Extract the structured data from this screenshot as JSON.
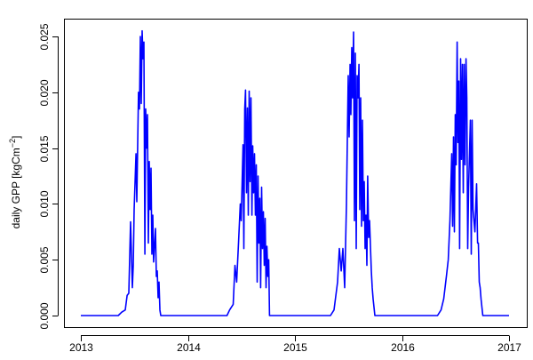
{
  "chart_data": {
    "type": "line",
    "title": "",
    "xlabel": "",
    "ylabel": "daily GPP [kgCm",
    "ylabel_superscript": "−2",
    "ylabel_close": "]",
    "xlim": [
      2013,
      2017
    ],
    "ylim": [
      0,
      0.025
    ],
    "x_ticks": [
      2013,
      2014,
      2015,
      2016,
      2017
    ],
    "x_tick_labels": [
      "2013",
      "2014",
      "2015",
      "2016",
      "2017"
    ],
    "y_ticks": [
      0,
      0.005,
      0.01,
      0.015,
      0.02,
      0.025
    ],
    "y_tick_labels": [
      "0.000",
      "0.005",
      "0.010",
      "0.015",
      "0.020",
      "0.025"
    ],
    "grid": false,
    "legend": "none",
    "series": [
      {
        "color": "#0000ff",
        "points": [
          [
            2013.0,
            0
          ],
          [
            2013.349,
            0
          ],
          [
            2013.382,
            0.0003
          ],
          [
            2013.415,
            0.0005
          ],
          [
            2013.432,
            0.0018
          ],
          [
            2013.448,
            0.002
          ],
          [
            2013.465,
            0.0084
          ],
          [
            2013.481,
            0.0025
          ],
          [
            2013.49,
            0.0045
          ],
          [
            2013.498,
            0.0095
          ],
          [
            2013.515,
            0.0145
          ],
          [
            2013.523,
            0.0102
          ],
          [
            2013.539,
            0.02
          ],
          [
            2013.548,
            0.0185
          ],
          [
            2013.556,
            0.025
          ],
          [
            2013.564,
            0.019
          ],
          [
            2013.573,
            0.0255
          ],
          [
            2013.581,
            0.023
          ],
          [
            2013.589,
            0.0245
          ],
          [
            2013.598,
            0.0055
          ],
          [
            2013.606,
            0.0185
          ],
          [
            2013.614,
            0.015
          ],
          [
            2013.622,
            0.018
          ],
          [
            2013.631,
            0.0065
          ],
          [
            2013.639,
            0.0138
          ],
          [
            2013.647,
            0.0095
          ],
          [
            2013.656,
            0.0132
          ],
          [
            2013.664,
            0.0055
          ],
          [
            2013.672,
            0.009
          ],
          [
            2013.68,
            0.0048
          ],
          [
            2013.697,
            0.0078
          ],
          [
            2013.705,
            0.0035
          ],
          [
            2013.714,
            0.004
          ],
          [
            2013.722,
            0.0016
          ],
          [
            2013.73,
            0.003
          ],
          [
            2013.739,
            0.0005
          ],
          [
            2013.747,
            0
          ],
          [
            2014.365,
            0
          ],
          [
            2014.39,
            0.0005
          ],
          [
            2014.423,
            0.001
          ],
          [
            2014.44,
            0.0045
          ],
          [
            2014.456,
            0.003
          ],
          [
            2014.473,
            0.0065
          ],
          [
            2014.49,
            0.01
          ],
          [
            2014.498,
            0.0085
          ],
          [
            2014.515,
            0.0153
          ],
          [
            2014.523,
            0.006
          ],
          [
            2014.531,
            0.0185
          ],
          [
            2014.539,
            0.0202
          ],
          [
            2014.548,
            0.011
          ],
          [
            2014.556,
            0.0186
          ],
          [
            2014.564,
            0.009
          ],
          [
            2014.573,
            0.0201
          ],
          [
            2014.581,
            0.012
          ],
          [
            2014.589,
            0.0195
          ],
          [
            2014.598,
            0.009
          ],
          [
            2014.606,
            0.0152
          ],
          [
            2014.614,
            0.011
          ],
          [
            2014.622,
            0.0145
          ],
          [
            2014.631,
            0.009
          ],
          [
            2014.639,
            0.0135
          ],
          [
            2014.647,
            0.003
          ],
          [
            2014.656,
            0.0125
          ],
          [
            2014.664,
            0.0065
          ],
          [
            2014.672,
            0.0105
          ],
          [
            2014.68,
            0.0025
          ],
          [
            2014.689,
            0.0115
          ],
          [
            2014.697,
            0.006
          ],
          [
            2014.705,
            0.0093
          ],
          [
            2014.714,
            0.0045
          ],
          [
            2014.722,
            0.0087
          ],
          [
            2014.73,
            0.0025
          ],
          [
            2014.739,
            0.0062
          ],
          [
            2014.747,
            0.0035
          ],
          [
            2014.755,
            0.005
          ],
          [
            2014.763,
            0
          ],
          [
            2015.332,
            0
          ],
          [
            2015.365,
            0.0005
          ],
          [
            2015.398,
            0.003
          ],
          [
            2015.415,
            0.006
          ],
          [
            2015.432,
            0.004
          ],
          [
            2015.448,
            0.006
          ],
          [
            2015.465,
            0.0025
          ],
          [
            2015.481,
            0.01
          ],
          [
            2015.498,
            0.0215
          ],
          [
            2015.506,
            0.016
          ],
          [
            2015.515,
            0.0225
          ],
          [
            2015.523,
            0.018
          ],
          [
            2015.531,
            0.024
          ],
          [
            2015.539,
            0.0195
          ],
          [
            2015.548,
            0.0254
          ],
          [
            2015.556,
            0.0085
          ],
          [
            2015.564,
            0.0235
          ],
          [
            2015.573,
            0.006
          ],
          [
            2015.581,
            0.0215
          ],
          [
            2015.589,
            0.0195
          ],
          [
            2015.598,
            0.0225
          ],
          [
            2015.606,
            0.0095
          ],
          [
            2015.614,
            0.0195
          ],
          [
            2015.622,
            0.008
          ],
          [
            2015.631,
            0.0175
          ],
          [
            2015.639,
            0.0085
          ],
          [
            2015.647,
            0.012
          ],
          [
            2015.656,
            0.006
          ],
          [
            2015.664,
            0.009
          ],
          [
            2015.672,
            0.0045
          ],
          [
            2015.68,
            0.0125
          ],
          [
            2015.689,
            0.007
          ],
          [
            2015.697,
            0.0085
          ],
          [
            2015.714,
            0.004
          ],
          [
            2015.722,
            0.0025
          ],
          [
            2015.73,
            0.0015
          ],
          [
            2015.747,
            0
          ],
          [
            2016.332,
            0
          ],
          [
            2016.365,
            0.0005
          ],
          [
            2016.39,
            0.0015
          ],
          [
            2016.415,
            0.0035
          ],
          [
            2016.432,
            0.005
          ],
          [
            2016.448,
            0.0085
          ],
          [
            2016.465,
            0.0145
          ],
          [
            2016.473,
            0.008
          ],
          [
            2016.481,
            0.016
          ],
          [
            2016.49,
            0.0075
          ],
          [
            2016.498,
            0.018
          ],
          [
            2016.506,
            0.0135
          ],
          [
            2016.515,
            0.0245
          ],
          [
            2016.523,
            0.0155
          ],
          [
            2016.531,
            0.021
          ],
          [
            2016.539,
            0.006
          ],
          [
            2016.548,
            0.023
          ],
          [
            2016.556,
            0.014
          ],
          [
            2016.564,
            0.0225
          ],
          [
            2016.573,
            0.011
          ],
          [
            2016.581,
            0.0225
          ],
          [
            2016.589,
            0.0135
          ],
          [
            2016.598,
            0.023
          ],
          [
            2016.606,
            0.0195
          ],
          [
            2016.614,
            0.006
          ],
          [
            2016.622,
            0.0115
          ],
          [
            2016.639,
            0.0175
          ],
          [
            2016.647,
            0.0055
          ],
          [
            2016.656,
            0.0175
          ],
          [
            2016.664,
            0.0095
          ],
          [
            2016.681,
            0.0075
          ],
          [
            2016.697,
            0.0118
          ],
          [
            2016.706,
            0.0065
          ],
          [
            2016.714,
            0.0065
          ],
          [
            2016.722,
            0.003
          ],
          [
            2016.73,
            0.0025
          ],
          [
            2016.739,
            0.0015
          ],
          [
            2016.755,
            0
          ],
          [
            2017.0,
            0
          ]
        ]
      }
    ]
  }
}
